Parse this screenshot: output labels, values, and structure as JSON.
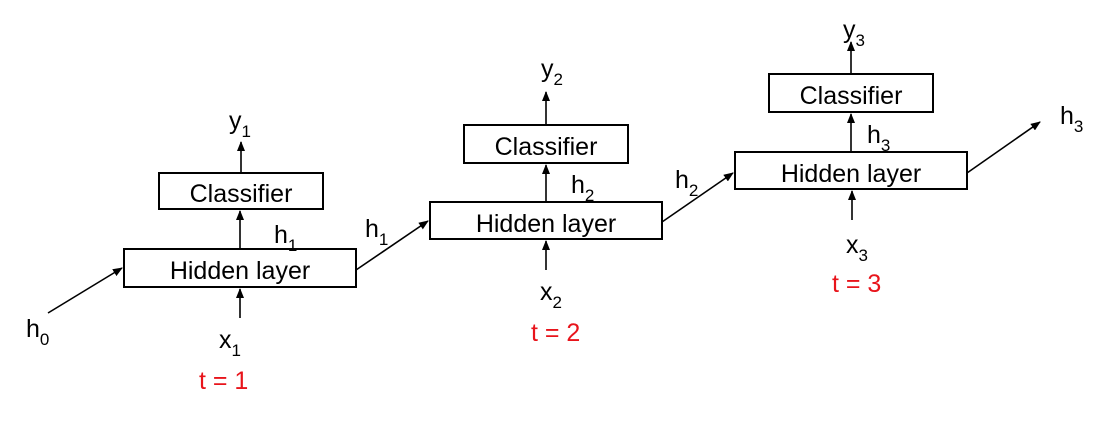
{
  "colors": {
    "ink": "#000000",
    "time_label": "#e8141b"
  },
  "boxes": {
    "hidden": "Hidden layer",
    "classifier": "Classifier"
  },
  "labels": {
    "h0": {
      "main": "h",
      "sub": "0"
    },
    "h1": {
      "main": "h",
      "sub": "1"
    },
    "h2": {
      "main": "h",
      "sub": "2"
    },
    "h3": {
      "main": "h",
      "sub": "3"
    },
    "x1": {
      "main": "x",
      "sub": "1"
    },
    "x2": {
      "main": "x",
      "sub": "2"
    },
    "x3": {
      "main": "x",
      "sub": "3"
    },
    "y1": {
      "main": "y",
      "sub": "1"
    },
    "y2": {
      "main": "y",
      "sub": "2"
    },
    "y3": {
      "main": "y",
      "sub": "3"
    }
  },
  "timesteps": {
    "t1": "t = 1",
    "t2": "t = 2",
    "t3": "t = 3"
  }
}
